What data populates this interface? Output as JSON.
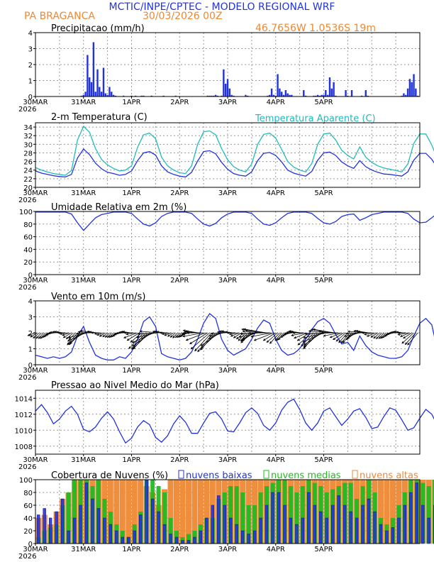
{
  "header": {
    "title": "MCTIC/INPE/CPTEC - MODELO REGIONAL WRF",
    "station": "PA BRAGANCA",
    "run": "30/03/2026 00Z",
    "coords": "46.7656W 1.0536S 19m"
  },
  "colors": {
    "blue": "#2233dd",
    "cyan": "#22bbbb",
    "orange": "#ee8833",
    "green": "#22bb22",
    "grid": "#999999",
    "arrow": "#000000"
  },
  "x_ticks": [
    "30MAR",
    "31MAR",
    "1APR",
    "2APR",
    "3APR",
    "4APR",
    "5APR"
  ],
  "x_year": "2026",
  "chart_data": [
    {
      "type": "bar",
      "title": "Precipitacao (mm/h)",
      "ylim": [
        0,
        4
      ],
      "yticks": [
        "0",
        "1",
        "2",
        "3",
        "4"
      ],
      "x_start_hour": 0,
      "step_hours": 1,
      "nonzero": [
        {
          "h": 23,
          "v": 0.05
        },
        {
          "h": 24,
          "v": 0.1
        },
        {
          "h": 25,
          "v": 0.3
        },
        {
          "h": 26,
          "v": 2.6
        },
        {
          "h": 27,
          "v": 1.2
        },
        {
          "h": 28,
          "v": 0.9
        },
        {
          "h": 29,
          "v": 3.4
        },
        {
          "h": 30,
          "v": 0.3
        },
        {
          "h": 31,
          "v": 1.7
        },
        {
          "h": 32,
          "v": 0.6
        },
        {
          "h": 33,
          "v": 0.3
        },
        {
          "h": 34,
          "v": 1.8
        },
        {
          "h": 35,
          "v": 0.2
        },
        {
          "h": 36,
          "v": 0.1
        },
        {
          "h": 37,
          "v": 0.6
        },
        {
          "h": 38,
          "v": 0.3
        },
        {
          "h": 39,
          "v": 0.1
        },
        {
          "h": 40,
          "v": 0.05
        },
        {
          "h": 44,
          "v": 0.05
        },
        {
          "h": 48,
          "v": 0.05
        },
        {
          "h": 50,
          "v": 0.05
        },
        {
          "h": 53,
          "v": 0.05
        },
        {
          "h": 54,
          "v": 0.05
        },
        {
          "h": 58,
          "v": 0.05
        },
        {
          "h": 64,
          "v": 0.05
        },
        {
          "h": 70,
          "v": 0.05
        },
        {
          "h": 86,
          "v": 0.05
        },
        {
          "h": 87,
          "v": 0.05
        },
        {
          "h": 88,
          "v": 0.05
        },
        {
          "h": 89,
          "v": 0.05
        },
        {
          "h": 90,
          "v": 0.1
        },
        {
          "h": 91,
          "v": 0.05
        },
        {
          "h": 93,
          "v": 0.05
        },
        {
          "h": 94,
          "v": 1.7
        },
        {
          "h": 95,
          "v": 0.8
        },
        {
          "h": 96,
          "v": 1.1
        },
        {
          "h": 97,
          "v": 0.5
        },
        {
          "h": 98,
          "v": 0.1
        },
        {
          "h": 99,
          "v": 0.05
        },
        {
          "h": 105,
          "v": 0.1
        },
        {
          "h": 106,
          "v": 0.05
        },
        {
          "h": 116,
          "v": 0.05
        },
        {
          "h": 117,
          "v": 0.1
        },
        {
          "h": 118,
          "v": 0.5
        },
        {
          "h": 119,
          "v": 0.1
        },
        {
          "h": 120,
          "v": 0.05
        },
        {
          "h": 121,
          "v": 1.4
        },
        {
          "h": 122,
          "v": 0.5
        },
        {
          "h": 123,
          "v": 0.3
        },
        {
          "h": 124,
          "v": 0.1
        },
        {
          "h": 125,
          "v": 0.4
        },
        {
          "h": 126,
          "v": 0.2
        },
        {
          "h": 127,
          "v": 0.1
        },
        {
          "h": 128,
          "v": 0.1
        },
        {
          "h": 134,
          "v": 0.4
        },
        {
          "h": 135,
          "v": 0.05
        },
        {
          "h": 139,
          "v": 0.05
        },
        {
          "h": 140,
          "v": 0.05
        },
        {
          "h": 141,
          "v": 0.1
        },
        {
          "h": 142,
          "v": 0.05
        },
        {
          "h": 143,
          "v": 0.1
        },
        {
          "h": 144,
          "v": 0.1
        },
        {
          "h": 145,
          "v": 0.4
        },
        {
          "h": 146,
          "v": 0.1
        },
        {
          "h": 147,
          "v": 1.2
        },
        {
          "h": 148,
          "v": 0.5
        },
        {
          "h": 149,
          "v": 0.9
        },
        {
          "h": 150,
          "v": 0.05
        },
        {
          "h": 155,
          "v": 0.4
        },
        {
          "h": 156,
          "v": 0.05
        },
        {
          "h": 158,
          "v": 0.4
        },
        {
          "h": 163,
          "v": 0.05
        },
        {
          "h": 165,
          "v": 0.4
        },
        {
          "h": 166,
          "v": 0.05
        },
        {
          "h": 183,
          "v": 0.05
        },
        {
          "h": 184,
          "v": 0.2
        },
        {
          "h": 185,
          "v": 0.1
        },
        {
          "h": 186,
          "v": 0.5
        },
        {
          "h": 187,
          "v": 1.1
        },
        {
          "h": 188,
          "v": 0.9
        },
        {
          "h": 189,
          "v": 1.4
        },
        {
          "h": 190,
          "v": 0.5
        },
        {
          "h": 191,
          "v": 0.05
        }
      ]
    },
    {
      "type": "line",
      "title": "2-m Temperatura (C)",
      "apparent_label": "Temperatura Aparente (C)",
      "ylim": [
        20,
        35
      ],
      "yticks": [
        "20",
        "22",
        "24",
        "26",
        "28",
        "30",
        "32",
        "34"
      ],
      "step_hours": 3,
      "series": [
        {
          "name": "Temperatura",
          "color": "#2233dd",
          "values": [
            23.8,
            23.3,
            23.0,
            22.7,
            22.5,
            22.4,
            23.0,
            26.8,
            28.9,
            27.6,
            25.6,
            24.3,
            23.5,
            23.2,
            22.8,
            23.0,
            23.8,
            26.2,
            28.0,
            28.3,
            27.5,
            25.0,
            23.6,
            23.0,
            22.6,
            22.4,
            23.5,
            26.1,
            28.3,
            28.5,
            27.8,
            25.8,
            24.2,
            23.2,
            22.8,
            22.6,
            23.6,
            26.2,
            27.9,
            28.1,
            27.4,
            25.9,
            24.0,
            23.3,
            22.9,
            22.6,
            23.7,
            26.3,
            28.0,
            28.2,
            27.4,
            25.9,
            25.0,
            24.4,
            26.2,
            24.8,
            24.0,
            23.5,
            23.1,
            23.0,
            22.8,
            22.6,
            23.6,
            26.3,
            27.9,
            27.9,
            26.5,
            24.4
          ]
        },
        {
          "name": "Temperatura Aparente",
          "color": "#22bbbb",
          "values": [
            24.6,
            24.0,
            23.6,
            23.2,
            23.0,
            22.8,
            23.9,
            31.0,
            34.2,
            32.8,
            29.0,
            26.5,
            25.2,
            24.4,
            23.8,
            24.0,
            25.0,
            29.3,
            32.2,
            32.6,
            31.3,
            27.0,
            25.0,
            24.0,
            23.4,
            23.2,
            25.0,
            30.0,
            32.9,
            33.1,
            32.2,
            29.0,
            26.4,
            24.8,
            24.0,
            23.6,
            25.4,
            30.0,
            32.3,
            32.6,
            31.4,
            28.8,
            26.0,
            24.7,
            24.0,
            23.6,
            25.5,
            30.0,
            32.4,
            32.6,
            31.0,
            28.6,
            27.4,
            26.6,
            29.4,
            27.0,
            25.8,
            25.0,
            24.5,
            24.2,
            23.9,
            23.6,
            25.4,
            30.2,
            32.4,
            32.4,
            29.8,
            26.4
          ]
        }
      ]
    },
    {
      "type": "line",
      "title": "Umidade Relativa em 2m (%)",
      "ylim": [
        0,
        100
      ],
      "yticks": [
        "0",
        "20",
        "40",
        "60",
        "80",
        "100"
      ],
      "step_hours": 3,
      "series": [
        {
          "name": "Umidade Relativa",
          "color": "#2233dd",
          "values": [
            99,
            99,
            99,
            99,
            99,
            99,
            96,
            82,
            70,
            80,
            90,
            95,
            97,
            99,
            99,
            99,
            97,
            88,
            80,
            77,
            82,
            92,
            97,
            99,
            99,
            99,
            97,
            88,
            80,
            77,
            81,
            90,
            96,
            99,
            99,
            99,
            97,
            88,
            80,
            78,
            82,
            90,
            97,
            99,
            99,
            99,
            97,
            89,
            82,
            80,
            84,
            92,
            95,
            96,
            86,
            90,
            95,
            97,
            99,
            99,
            99,
            99,
            97,
            88,
            82,
            83,
            90,
            98
          ]
        }
      ]
    },
    {
      "type": "line",
      "title": "Vento em 10m (m/s)",
      "ylim": [
        0,
        4
      ],
      "yticks": [
        "0",
        "1",
        "2",
        "3",
        "4"
      ],
      "step_hours": 3,
      "arrows": "wind direction vectors along the 2 m/s line",
      "series": [
        {
          "name": "Vento",
          "color": "#2233dd",
          "values": [
            0.6,
            0.5,
            0.4,
            0.5,
            0.4,
            0.5,
            0.8,
            1.8,
            2.4,
            1.4,
            0.6,
            0.4,
            0.3,
            0.3,
            0.5,
            0.4,
            0.8,
            1.6,
            2.7,
            3.0,
            2.4,
            0.7,
            0.5,
            0.4,
            0.3,
            0.4,
            0.8,
            1.6,
            2.6,
            3.2,
            2.9,
            1.6,
            0.9,
            0.6,
            0.8,
            1.0,
            1.6,
            2.3,
            2.8,
            2.6,
            1.6,
            0.9,
            0.6,
            0.7,
            1.0,
            1.6,
            2.2,
            2.7,
            2.9,
            2.6,
            1.9,
            1.3,
            1.4,
            0.9,
            1.8,
            1.2,
            0.8,
            0.6,
            0.5,
            0.4,
            0.4,
            0.5,
            0.9,
            1.8,
            2.6,
            2.9,
            2.5,
            0.8
          ]
        }
      ]
    },
    {
      "type": "line",
      "title": "Pressao ao Nivel Medio do Mar (hPa)",
      "ylim": [
        1007,
        1015
      ],
      "yticks": [
        "1008",
        "1010",
        "1012",
        "1014"
      ],
      "step_hours": 3,
      "series": [
        {
          "name": "Pressao",
          "color": "#2233dd",
          "values": [
            1012.4,
            1013.2,
            1012.2,
            1010.8,
            1011.4,
            1012.4,
            1013.0,
            1012.0,
            1010.1,
            1009.8,
            1010.4,
            1011.5,
            1012.3,
            1011.4,
            1009.8,
            1008.4,
            1009.0,
            1010.4,
            1011.2,
            1010.7,
            1009.1,
            1008.5,
            1009.3,
            1010.8,
            1011.8,
            1011.0,
            1009.6,
            1009.6,
            1010.9,
            1012.1,
            1012.3,
            1011.4,
            1009.9,
            1009.8,
            1010.9,
            1012.2,
            1012.8,
            1012.1,
            1010.6,
            1010.0,
            1010.9,
            1012.5,
            1013.5,
            1013.9,
            1012.6,
            1010.9,
            1010.0,
            1010.9,
            1012.4,
            1012.8,
            1011.7,
            1010.6,
            1011.4,
            1012.4,
            1012.7,
            1011.6,
            1010.2,
            1010.4,
            1011.7,
            1012.8,
            1012.5,
            1011.3,
            1010.0,
            1010.3,
            1011.5,
            1012.6,
            1012.0,
            1010.5
          ]
        }
      ]
    },
    {
      "type": "bar",
      "title": "Cobertura de Nuvens (%)",
      "legend": [
        "nuvens baixas",
        "nuvens medias",
        "nuvens altas"
      ],
      "ylim": [
        0,
        100
      ],
      "yticks": [
        "0",
        "20",
        "40",
        "60",
        "80",
        "100"
      ],
      "step_hours": 3,
      "series": [
        {
          "name": "nuvens altas",
          "color": "#ee8833",
          "values": [
            40,
            45,
            30,
            50,
            70,
            80,
            100,
            100,
            100,
            100,
            100,
            100,
            100,
            100,
            100,
            100,
            100,
            100,
            90,
            80,
            60,
            85,
            100,
            100,
            100,
            100,
            100,
            100,
            100,
            100,
            100,
            100,
            100,
            100,
            100,
            100,
            100,
            100,
            100,
            100,
            100,
            100,
            100,
            100,
            100,
            100,
            100,
            100,
            100,
            100,
            100,
            100,
            100,
            100,
            100,
            100,
            100,
            100,
            100,
            100,
            100,
            100,
            100,
            100,
            100,
            100,
            100,
            100
          ]
        },
        {
          "name": "nuvens medias",
          "color": "#22bb22",
          "values": [
            10,
            20,
            25,
            30,
            60,
            80,
            100,
            100,
            100,
            90,
            100,
            70,
            50,
            30,
            20,
            10,
            30,
            50,
            100,
            100,
            90,
            80,
            40,
            20,
            10,
            15,
            20,
            30,
            40,
            40,
            70,
            80,
            90,
            90,
            80,
            60,
            60,
            80,
            90,
            95,
            100,
            100,
            90,
            80,
            90,
            100,
            95,
            90,
            80,
            85,
            90,
            95,
            95,
            70,
            90,
            100,
            80,
            40,
            30,
            40,
            60,
            80,
            100,
            100,
            95,
            90,
            100,
            95
          ]
        },
        {
          "name": "nuvens baixas",
          "color": "#2233dd",
          "values": [
            45,
            55,
            40,
            50,
            70,
            20,
            40,
            60,
            95,
            70,
            55,
            40,
            30,
            20,
            10,
            10,
            20,
            45,
            100,
            70,
            50,
            30,
            15,
            10,
            5,
            5,
            10,
            20,
            40,
            60,
            75,
            60,
            40,
            30,
            20,
            15,
            20,
            40,
            60,
            80,
            80,
            60,
            40,
            30,
            40,
            80,
            60,
            50,
            40,
            60,
            75,
            60,
            50,
            40,
            60,
            70,
            50,
            30,
            20,
            25,
            40,
            60,
            80,
            95,
            60,
            40,
            60,
            70
          ]
        }
      ]
    }
  ]
}
